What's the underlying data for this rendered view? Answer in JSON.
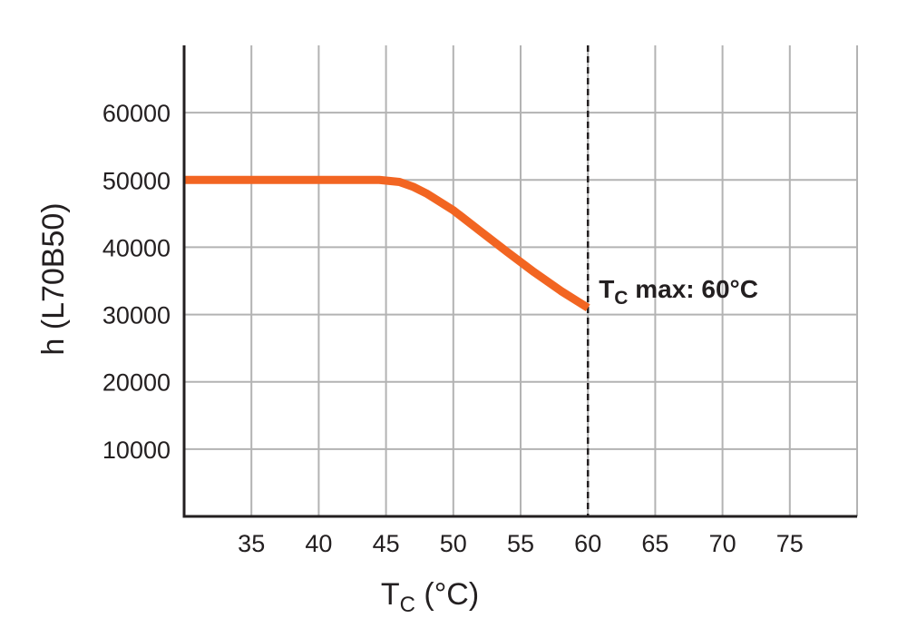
{
  "chart_data": {
    "type": "line",
    "title": "",
    "xlabel": "T",
    "xlabel_sub": "C",
    "xlabel_unit": " (°C)",
    "ylabel": "h (L70B50)",
    "xlim": [
      30,
      80
    ],
    "ylim": [
      0,
      70000
    ],
    "x_ticks": [
      35,
      40,
      45,
      50,
      55,
      60,
      65,
      70,
      75
    ],
    "x_tick_labels": [
      "35",
      "40",
      "45",
      "50",
      "55",
      "60",
      "65",
      "70",
      "75"
    ],
    "y_ticks": [
      10000,
      20000,
      30000,
      40000,
      50000,
      60000
    ],
    "y_tick_labels": [
      "10000",
      "20000",
      "30000",
      "40000",
      "50000",
      "60000"
    ],
    "grid": true,
    "series": [
      {
        "color": "#f26522",
        "x": [
          30,
          35,
          40,
          44.5,
          46,
          47,
          48,
          50,
          52,
          54,
          56,
          58,
          60
        ],
        "y": [
          50000,
          50000,
          50000,
          50000,
          49700,
          49000,
          48000,
          45500,
          42400,
          39300,
          36300,
          33500,
          31000
        ]
      }
    ],
    "reference_line": {
      "x": 60,
      "style": "dashed",
      "label_main": "T",
      "label_sub": "C",
      "label_rest": " max: 60°C"
    },
    "colors": {
      "line": "#f26522",
      "grid": "#b3b3b3",
      "axis": "#231f20",
      "text": "#231f20"
    }
  }
}
